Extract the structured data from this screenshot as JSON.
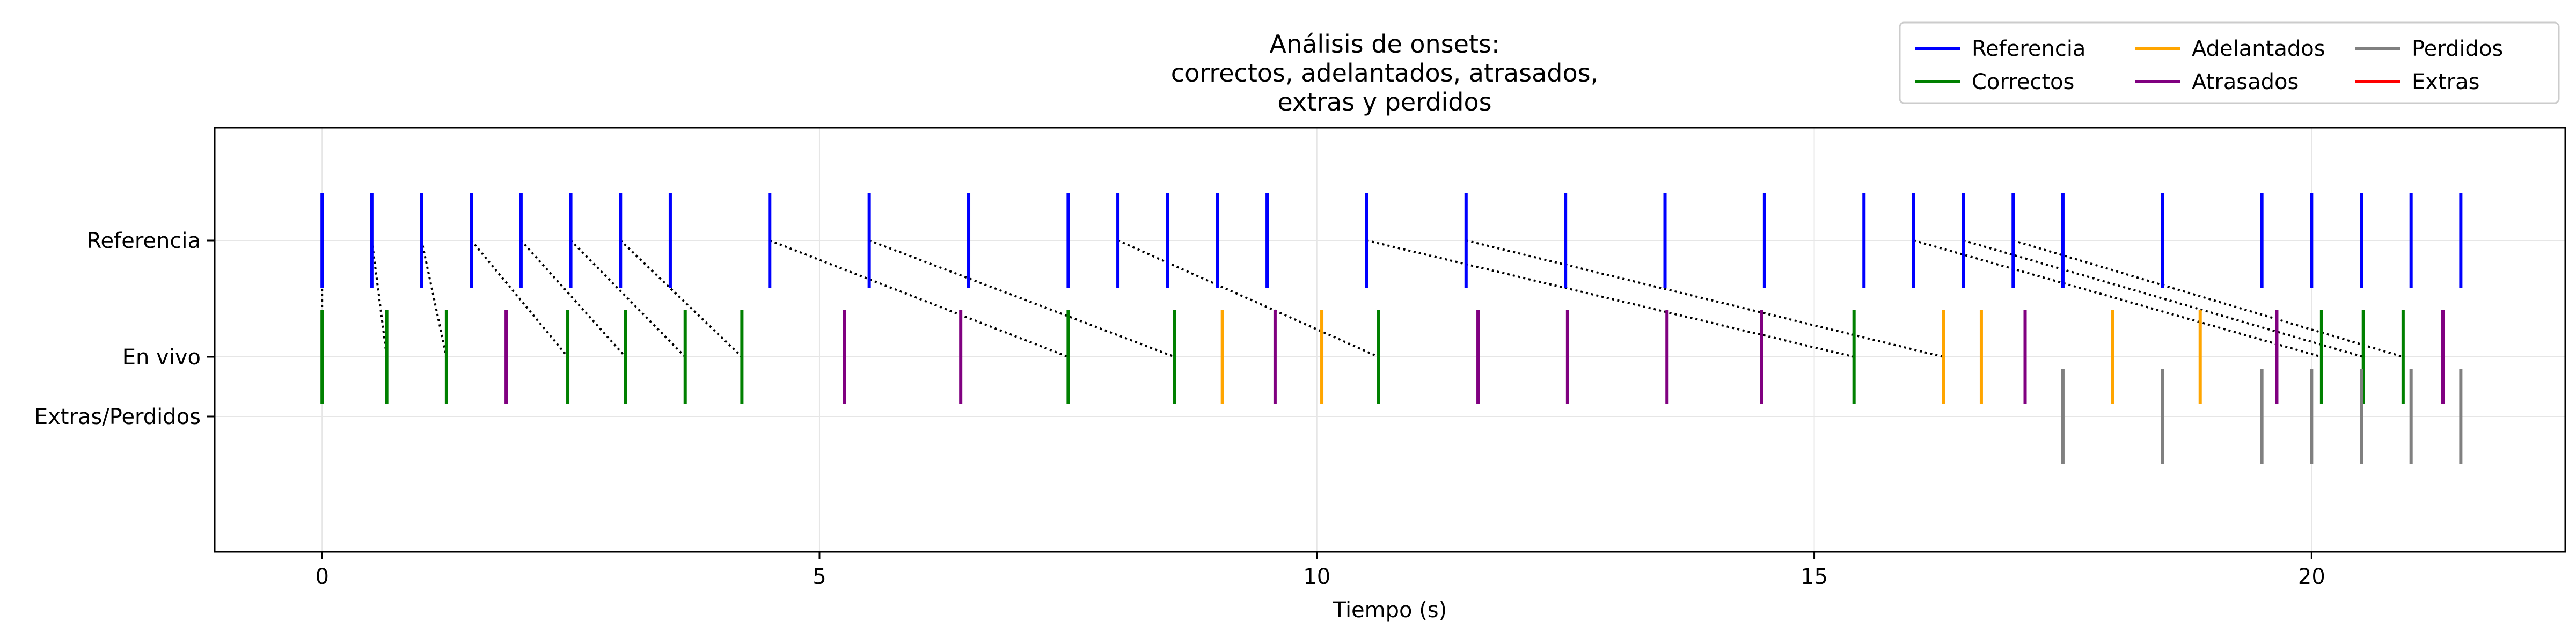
{
  "chart_data": {
    "type": "event",
    "title": [
      "Análisis de onsets:",
      "correctos, adelantados, atrasados,",
      "extras y perdidos"
    ],
    "xlabel": "Tiempo (s)",
    "ylabel": "",
    "xlim": [
      -1.08,
      22.55
    ],
    "x_ticks": [
      0,
      5,
      10,
      15,
      20
    ],
    "y_rows": [
      "Referencia",
      "En vivo",
      "Extras/Perdidos"
    ],
    "grid": true,
    "legend_position": "top-right",
    "legend": [
      {
        "name": "Referencia",
        "color": "#0000ff"
      },
      {
        "name": "Correctos",
        "color": "#008000"
      },
      {
        "name": "Adelantados",
        "color": "#ffa500"
      },
      {
        "name": "Atrasados",
        "color": "#800080"
      },
      {
        "name": "Perdidos",
        "color": "#808080"
      },
      {
        "name": "Extras",
        "color": "#ff0000"
      }
    ],
    "colors": {
      "referencia": "#0000ff",
      "correctos": "#008000",
      "adelantados": "#ffa500",
      "atrasados": "#800080",
      "perdidos": "#808080",
      "extras": "#ff0000",
      "matches": "#000000"
    },
    "referencia": [
      0,
      0.5,
      1.0,
      1.5,
      2.0,
      2.5,
      3.0,
      3.5,
      4.5,
      5.5,
      6.5,
      7.5,
      8.0,
      8.5,
      9.0,
      9.5,
      10.5,
      11.5,
      12.5,
      13.5,
      14.5,
      15.5,
      16.0,
      16.5,
      17.0,
      17.5,
      18.5,
      19.5,
      20.0,
      20.5,
      21.0,
      21.5
    ],
    "correctos": [
      0,
      0.65,
      1.25,
      2.47,
      3.05,
      3.65,
      4.22,
      7.5,
      8.57,
      10.62,
      15.4,
      20.1,
      20.52,
      20.92
    ],
    "adelantados": [
      9.05,
      10.05,
      16.3,
      16.68,
      18.0,
      18.88
    ],
    "atrasados": [
      1.85,
      5.25,
      6.42,
      9.58,
      11.62,
      12.52,
      13.52,
      14.47,
      17.12,
      19.65,
      21.32
    ],
    "perdidos": [
      17.5,
      18.5,
      19.5,
      20.0,
      20.5,
      21.0,
      21.5
    ],
    "extras": [],
    "matches": [
      [
        0,
        0
      ],
      [
        0.5,
        0.65
      ],
      [
        1.0,
        1.25
      ],
      [
        1.5,
        2.47
      ],
      [
        2.0,
        3.05
      ],
      [
        2.5,
        3.65
      ],
      [
        3.0,
        4.22
      ],
      [
        4.5,
        7.5
      ],
      [
        5.5,
        8.57
      ],
      [
        8.0,
        10.62
      ],
      [
        10.5,
        15.4
      ],
      [
        11.5,
        16.3
      ],
      [
        16.0,
        20.1
      ],
      [
        16.5,
        20.52
      ],
      [
        17.0,
        20.92
      ]
    ]
  }
}
